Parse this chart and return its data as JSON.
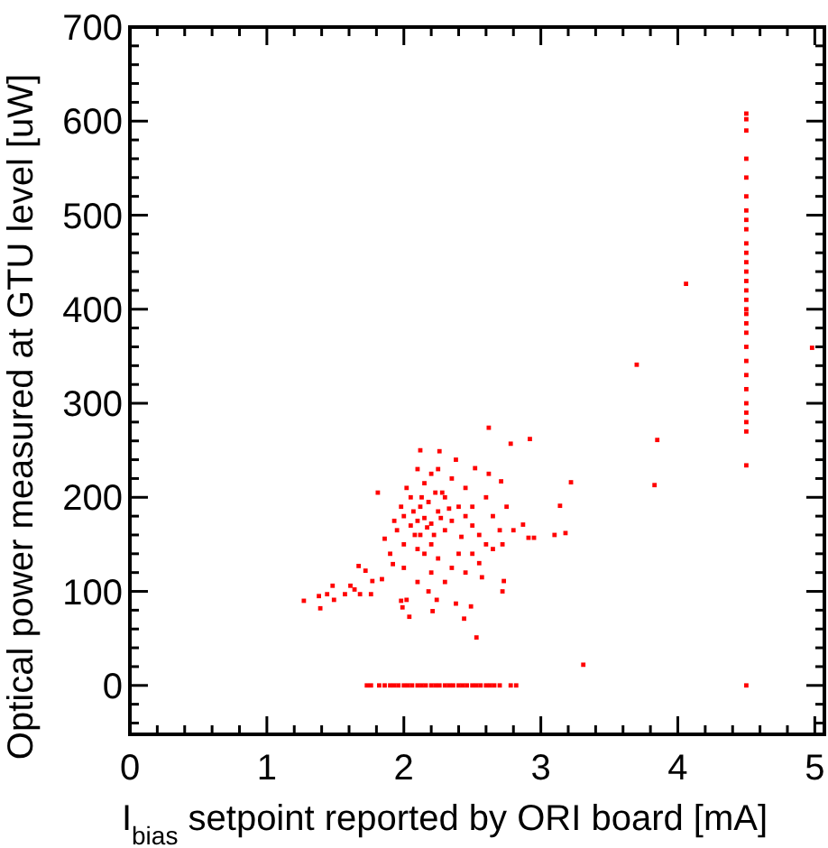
{
  "chart_data": {
    "type": "scatter",
    "xlabel": "I$_{bias}$ setpoint reported by ORI board [mA]",
    "ylabel": "Optical power measured at GTU level [uW]",
    "xlim": [
      0,
      5.07
    ],
    "ylim": [
      -52,
      700
    ],
    "xticks": [
      0,
      {
        "value": 0.2,
        "label": null
      },
      {
        "value": 0.4,
        "label": null
      },
      {
        "value": 0.6,
        "label": null
      },
      {
        "value": 0.8,
        "label": null
      },
      1,
      {
        "value": 1.2,
        "label": null
      },
      {
        "value": 1.4,
        "label": null
      },
      {
        "value": 1.6,
        "label": null
      },
      {
        "value": 1.8,
        "label": null
      },
      2,
      {
        "value": 2.2,
        "label": null
      },
      {
        "value": 2.4,
        "label": null
      },
      {
        "value": 2.6,
        "label": null
      },
      {
        "value": 2.8,
        "label": null
      },
      3,
      {
        "value": 3.2,
        "label": null
      },
      {
        "value": 3.4,
        "label": null
      },
      {
        "value": 3.6,
        "label": null
      },
      {
        "value": 3.8,
        "label": null
      },
      4,
      {
        "value": 4.2,
        "label": null
      },
      {
        "value": 4.4,
        "label": null
      },
      {
        "value": 4.6,
        "label": null
      },
      {
        "value": 4.8,
        "label": null
      },
      5
    ],
    "yticks": [
      {
        "value": -40,
        "label": null
      },
      {
        "value": -20,
        "label": null
      },
      0,
      {
        "value": 20,
        "label": null
      },
      {
        "value": 40,
        "label": null
      },
      {
        "value": 60,
        "label": null
      },
      {
        "value": 80,
        "label": null
      },
      100,
      {
        "value": 120,
        "label": null
      },
      {
        "value": 140,
        "label": null
      },
      {
        "value": 160,
        "label": null
      },
      {
        "value": 180,
        "label": null
      },
      200,
      {
        "value": 220,
        "label": null
      },
      {
        "value": 240,
        "label": null
      },
      {
        "value": 260,
        "label": null
      },
      {
        "value": 280,
        "label": null
      },
      300,
      {
        "value": 320,
        "label": null
      },
      {
        "value": 340,
        "label": null
      },
      {
        "value": 360,
        "label": null
      },
      {
        "value": 380,
        "label": null
      },
      400,
      {
        "value": 420,
        "label": null
      },
      {
        "value": 440,
        "label": null
      },
      {
        "value": 460,
        "label": null
      },
      {
        "value": 480,
        "label": null
      },
      500,
      {
        "value": 520,
        "label": null
      },
      {
        "value": 540,
        "label": null
      },
      {
        "value": 560,
        "label": null
      },
      {
        "value": 580,
        "label": null
      },
      600,
      {
        "value": 620,
        "label": null
      },
      {
        "value": 640,
        "label": null
      },
      {
        "value": 660,
        "label": null
      },
      {
        "value": 680,
        "label": null
      },
      700
    ],
    "grid": false,
    "marker": "square",
    "series": [
      {
        "color": "#ff0000",
        "x": [
          1.27,
          1.39,
          1.38,
          1.44,
          1.48,
          1.49,
          1.57,
          1.61,
          1.64,
          1.68,
          1.67,
          1.72,
          1.76,
          1.77,
          1.84,
          1.81,
          1.86,
          1.92,
          1.98,
          2.02,
          2.04,
          1.99,
          2.21,
          2.24,
          2.38,
          2.44,
          2.49,
          2.53,
          2.72,
          2.73,
          2.12,
          2.26,
          2.62,
          2.78,
          2.92,
          2.52,
          2.71,
          2.87,
          2.91,
          2.95,
          3.1,
          3.14,
          3.18,
          3.22,
          3.31,
          3.7,
          3.85,
          3.83,
          4.06,
          4.98,
          4.5,
          4.5,
          4.5,
          4.5,
          4.5,
          4.5,
          4.5,
          4.5,
          4.5,
          4.5,
          4.5,
          4.5,
          4.5,
          4.5,
          4.5,
          4.5,
          4.5,
          4.5,
          4.5,
          4.5,
          4.5,
          4.5,
          4.5,
          4.5,
          4.5,
          4.5,
          4.5,
          4.5,
          4.5,
          4.5,
          1.73,
          1.76,
          1.82,
          1.86,
          1.9,
          1.93,
          1.96,
          2.0,
          2.03,
          2.06,
          2.1,
          2.13,
          2.16,
          2.2,
          2.23,
          2.26,
          2.3,
          2.33,
          2.36,
          2.4,
          2.43,
          2.46,
          2.5,
          2.53,
          2.56,
          2.6,
          2.63,
          2.66,
          2.7,
          2.78,
          2.82,
          2.0,
          2.05,
          2.1,
          2.15,
          2.2,
          2.12,
          2.18,
          2.08,
          2.22,
          2.25,
          2.3,
          2.28,
          2.05,
          1.98,
          1.95,
          2.0,
          2.1,
          2.15,
          2.2,
          2.25,
          2.3,
          2.35,
          2.4,
          2.45,
          2.5,
          2.55,
          2.6,
          2.4,
          2.35,
          2.2,
          2.1,
          2.0,
          1.9,
          2.15,
          2.2,
          2.1,
          2.25,
          2.35,
          2.45,
          2.5,
          2.6,
          2.65,
          2.7,
          2.65,
          2.55,
          2.45,
          2.3,
          2.18,
          1.93,
          2.02,
          2.38,
          2.62,
          2.75,
          2.72,
          2.5,
          2.12,
          2.17,
          2.07,
          2.27,
          2.13,
          2.23,
          2.33,
          2.42,
          2.57,
          2.8
        ],
        "values": [
          90,
          82,
          95,
          97,
          106,
          91,
          97,
          106,
          102,
          97,
          127,
          122,
          97,
          111,
          113,
          205,
          156,
          129,
          90,
          91,
          73,
          83,
          79,
          91,
          87,
          71,
          84,
          51,
          100,
          111,
          250,
          249,
          274,
          257,
          262,
          231,
          217,
          171,
          157,
          157,
          160,
          191,
          162,
          216,
          22,
          341,
          261,
          213,
          427,
          359,
          234,
          608,
          602,
          590,
          560,
          540,
          520,
          505,
          495,
          485,
          470,
          460,
          450,
          440,
          430,
          420,
          410,
          400,
          395,
          385,
          375,
          360,
          345,
          330,
          315,
          300,
          290,
          280,
          270,
          0,
          0,
          0,
          0,
          0,
          0,
          0,
          0,
          0,
          0,
          0,
          0,
          0,
          0,
          0,
          0,
          0,
          0,
          0,
          0,
          0,
          0,
          0,
          0,
          0,
          0,
          0,
          0,
          0,
          0,
          0,
          0,
          180,
          170,
          175,
          178,
          172,
          190,
          195,
          160,
          160,
          185,
          200,
          205,
          200,
          190,
          165,
          150,
          145,
          140,
          150,
          135,
          165,
          175,
          190,
          180,
          170,
          160,
          150,
          140,
          125,
          120,
          110,
          125,
          140,
          215,
          225,
          230,
          230,
          220,
          210,
          190,
          200,
          180,
          165,
          145,
          130,
          120,
          110,
          100,
          175,
          210,
          240,
          225,
          190,
          150,
          140,
          160,
          168,
          185,
          178,
          200,
          205,
          188,
          158,
          115,
          165
        ]
      }
    ]
  }
}
